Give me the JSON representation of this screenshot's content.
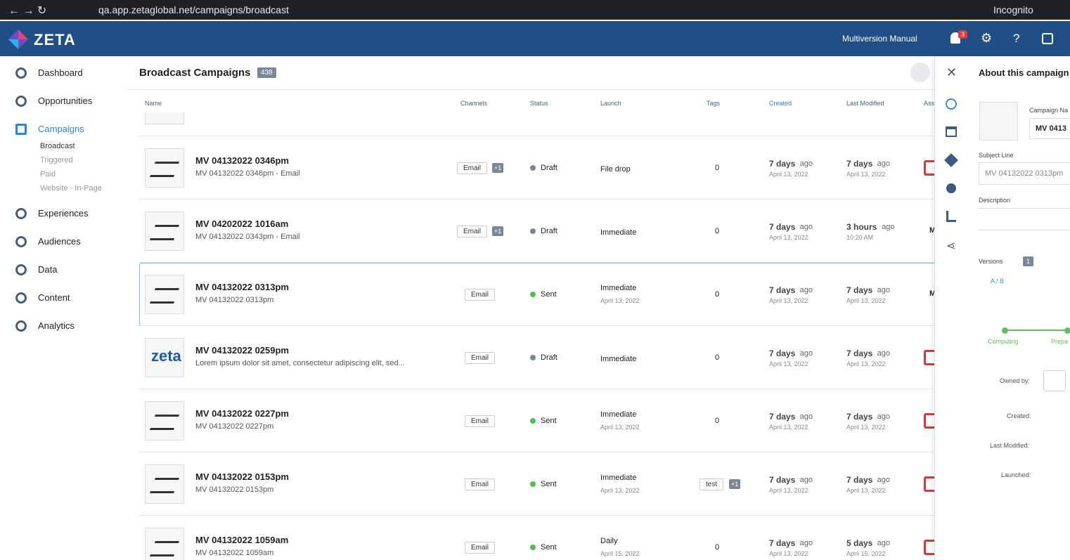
{
  "browser": {
    "url": "qa.app.zetaglobal.net/campaigns/broadcast",
    "mode": "Incognito"
  },
  "header": {
    "logo": "ZETA",
    "account": "Multiversion Manual",
    "notifications": "3"
  },
  "sidebar": {
    "items": [
      {
        "label": "Dashboard"
      },
      {
        "label": "Opportunities"
      },
      {
        "label": "Campaigns",
        "active": true,
        "children": [
          "Broadcast",
          "Triggered",
          "Paid",
          "Website - In-Page"
        ]
      },
      {
        "label": "Experiences"
      },
      {
        "label": "Audiences"
      },
      {
        "label": "Data"
      },
      {
        "label": "Content"
      },
      {
        "label": "Analytics"
      }
    ]
  },
  "main": {
    "title": "Broadcast Campaigns",
    "count": "438",
    "columns": [
      "Name",
      "Channels",
      "Status",
      "Launch",
      "Tags",
      "Created",
      "Last Modified",
      "Ass"
    ],
    "rows": [
      {
        "name": "MV 04132022 0346pm",
        "subtitle": "MV 04132022 0346pm - Email",
        "channel": "Email",
        "channel_extra": "+1",
        "status": "Draft",
        "launch": "File drop",
        "tags": "0",
        "created": "7 days",
        "created_suffix": "ago",
        "created_date": "April 13, 2022",
        "modified": "7 days",
        "modified_suffix": "ago",
        "modified_date": "April 13, 2022"
      },
      {
        "name": "MV 04202022 1016am",
        "subtitle": "MV 04132022 0343pm - Email",
        "channel": "Email",
        "channel_extra": "+1",
        "status": "Draft",
        "launch": "Immediate",
        "tags": "0",
        "created": "7 days",
        "created_suffix": "ago",
        "created_date": "April 13, 2022",
        "modified": "3 hours",
        "modified_suffix": "ago",
        "modified_date": "10:20 AM",
        "asset": "M"
      },
      {
        "name": "MV 04132022 0313pm",
        "subtitle": "MV 04132022 0313pm",
        "channel": "Email",
        "status": "Sent",
        "launch": "Immediate",
        "launch_date": "April 13, 2022",
        "tags": "0",
        "created": "7 days",
        "created_suffix": "ago",
        "created_date": "April 13, 2022",
        "modified": "7 days",
        "modified_suffix": "ago",
        "modified_date": "April 13, 2022",
        "asset": "M",
        "selected": true
      },
      {
        "name": "MV 04132022 0259pm",
        "subtitle": "Lorem ipsum dolor sit amet, consectetur adipiscing elit, sed...",
        "thumb_text": "zeta",
        "channel": "Email",
        "status": "Draft",
        "launch": "Immediate",
        "tags": "0",
        "created": "7 days",
        "created_suffix": "ago",
        "created_date": "April 13, 2022",
        "modified": "7 days",
        "modified_suffix": "ago",
        "modified_date": "April 13, 2022"
      },
      {
        "name": "MV 04132022 0227pm",
        "subtitle": "MV 04132022 0227pm",
        "channel": "Email",
        "status": "Sent",
        "launch": "Immediate",
        "launch_date": "April 13, 2022",
        "tags": "0",
        "created": "7 days",
        "created_suffix": "ago",
        "created_date": "April 13, 2022",
        "modified": "7 days",
        "modified_suffix": "ago",
        "modified_date": "April 13, 2022"
      },
      {
        "name": "MV 04132022 0153pm",
        "subtitle": "MV 04132022 0153pm",
        "channel": "Email",
        "status": "Sent",
        "launch": "Immediate",
        "launch_date": "April 13, 2022",
        "tag": "test",
        "tags_extra": "+1",
        "created": "7 days",
        "created_suffix": "ago",
        "created_date": "April 13, 2022",
        "modified": "7 days",
        "modified_suffix": "ago",
        "modified_date": "April 13, 2022"
      },
      {
        "name": "MV 04132022 1059am",
        "subtitle": "MV 04132022 1059am",
        "channel": "Email",
        "status": "Sent",
        "launch": "Daily",
        "launch_date": "April 15, 2022",
        "tags": "0",
        "created": "7 days",
        "created_suffix": "ago",
        "created_date": "April 13, 2022",
        "modified": "5 days",
        "modified_suffix": "ago",
        "modified_date": "April 15, 2022"
      }
    ]
  },
  "panel": {
    "title": "About this campaign",
    "name_label": "Campaign Na",
    "name_value": "MV 0413",
    "subject_label": "Subject Line",
    "subject_value": "MV 04132022 0313pm",
    "description_label": "Description",
    "versions_label": "Versions",
    "versions_count": "1",
    "ab": "A / B",
    "step1": "Computing",
    "step2": "Prepa",
    "owned": "Owned by:",
    "created": "Created:",
    "modified": "Last Modified:",
    "launched": "Launched:"
  }
}
